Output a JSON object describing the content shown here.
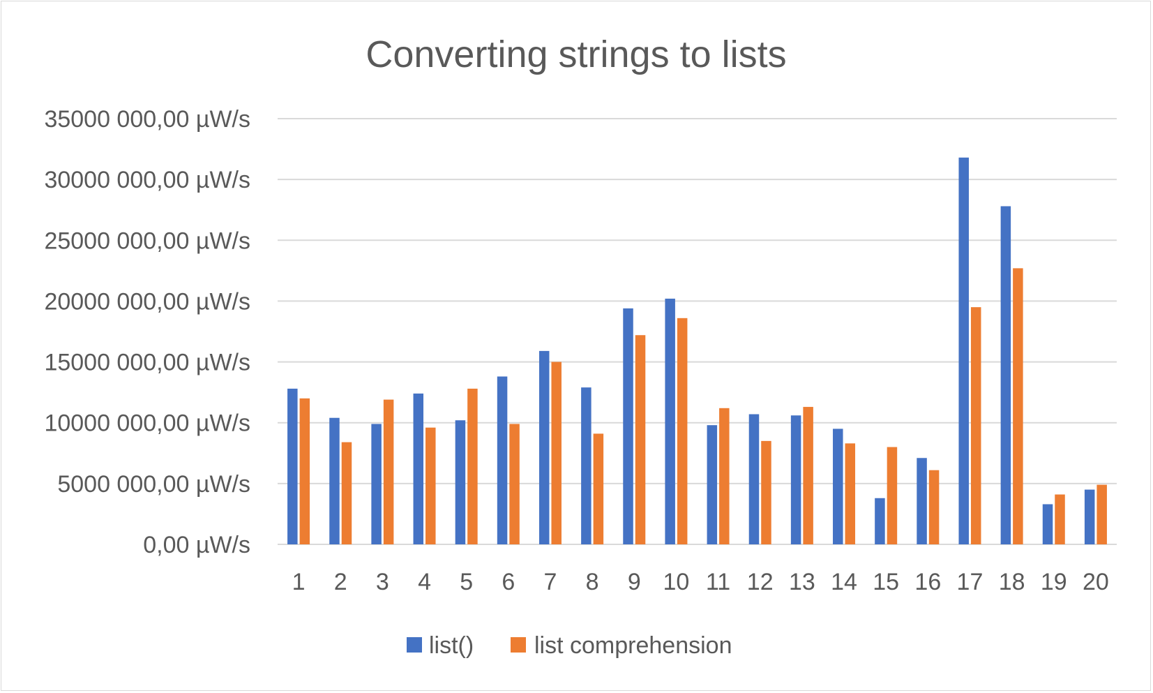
{
  "chart_data": {
    "type": "bar",
    "title": "Converting strings to lists",
    "xlabel": "",
    "ylabel": "",
    "ylim": [
      0,
      35000000
    ],
    "y_ticks": [
      0,
      5000000,
      10000000,
      15000000,
      20000000,
      25000000,
      30000000,
      35000000
    ],
    "y_tick_labels": [
      "0,00 µW/s",
      "5000 000,00 µW/s",
      "10000 000,00 µW/s",
      "15000 000,00 µW/s",
      "20000 000,00 µW/s",
      "25000 000,00 µW/s",
      "30000 000,00 µW/s",
      "35000 000,00 µW/s"
    ],
    "grid": true,
    "legend_position": "bottom",
    "categories": [
      "1",
      "2",
      "3",
      "4",
      "5",
      "6",
      "7",
      "8",
      "9",
      "10",
      "11",
      "12",
      "13",
      "14",
      "15",
      "16",
      "17",
      "18",
      "19",
      "20"
    ],
    "series": [
      {
        "name": "list()",
        "color": "#4472C4",
        "values": [
          12800000,
          10400000,
          9900000,
          12400000,
          10200000,
          13800000,
          15900000,
          12900000,
          19400000,
          20200000,
          9800000,
          10700000,
          10600000,
          9500000,
          3800000,
          7100000,
          31800000,
          27800000,
          3300000,
          4500000
        ]
      },
      {
        "name": "list comprehension",
        "color": "#ED7D31",
        "values": [
          12000000,
          8400000,
          11900000,
          9600000,
          12800000,
          9900000,
          15000000,
          9100000,
          17200000,
          18600000,
          11200000,
          8500000,
          11300000,
          8300000,
          8000000,
          6100000,
          19500000,
          22700000,
          4100000,
          4900000
        ]
      }
    ]
  }
}
